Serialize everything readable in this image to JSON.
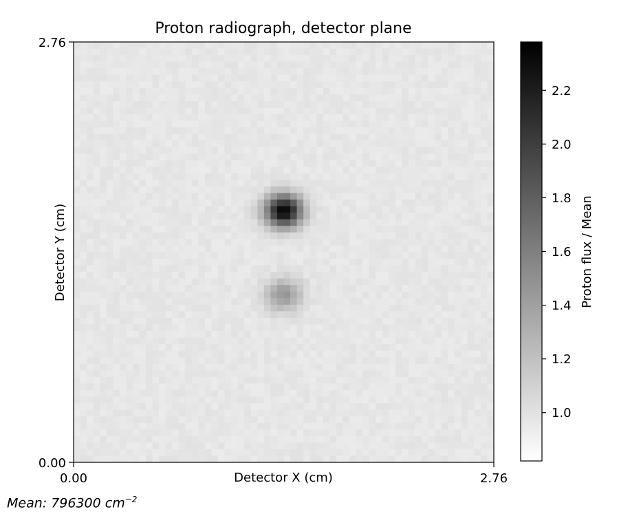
{
  "chart_data": {
    "type": "heatmap",
    "title": "Proton radiograph, detector plane",
    "xlabel": "Detector X (cm)",
    "ylabel": "Detector Y (cm)",
    "x_range": [
      0.0,
      2.76
    ],
    "y_range": [
      0.0,
      2.76
    ],
    "x_ticks": [
      "0.00",
      "2.76"
    ],
    "y_ticks": [
      "0.00",
      "2.76"
    ],
    "colormap": "greys",
    "colorbar": {
      "label": "Proton flux / Mean",
      "range": [
        0.82,
        2.38
      ],
      "ticks": [
        1.0,
        1.2,
        1.4,
        1.6,
        1.8,
        2.0,
        2.2
      ],
      "tick_labels": [
        "1.0",
        "1.2",
        "1.4",
        "1.6",
        "1.8",
        "2.0",
        "2.2"
      ]
    },
    "grid_size": [
      64,
      64
    ],
    "background_level": 0.97,
    "features": [
      {
        "x": 1.38,
        "y": 1.65,
        "peak": 2.38
      },
      {
        "x": 1.38,
        "y": 1.1,
        "peak": 1.45
      }
    ],
    "annotation": {
      "prefix": "Mean: 796300 cm",
      "exponent": "−2"
    }
  }
}
